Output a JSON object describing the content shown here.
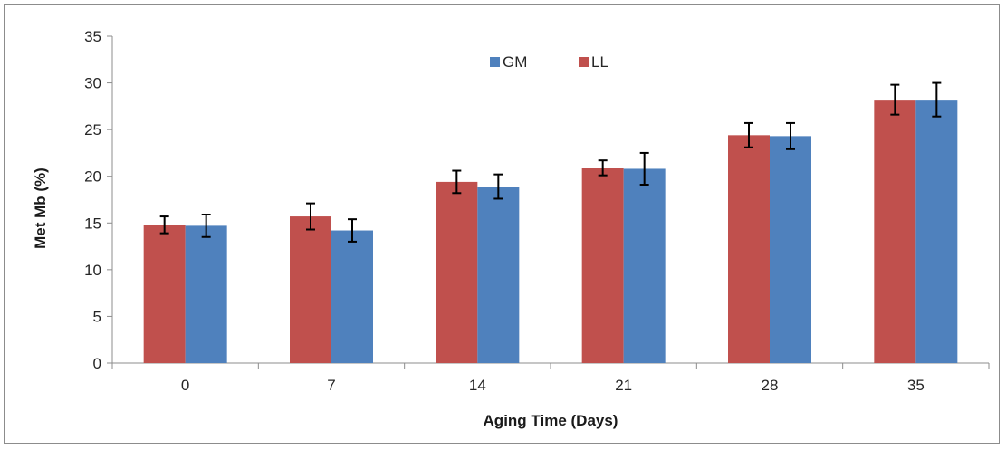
{
  "chart_data": {
    "type": "bar",
    "title": "",
    "xlabel": "Aging Time (Days)",
    "ylabel": "Met Mb (%)",
    "categories": [
      "0",
      "7",
      "14",
      "21",
      "28",
      "35"
    ],
    "ylim": [
      0,
      35
    ],
    "yticks": [
      "0",
      "5",
      "10",
      "15",
      "20",
      "25",
      "30",
      "35"
    ],
    "grid": false,
    "legend_position": "top-center",
    "series": [
      {
        "name": "LL",
        "color": "#c0504d",
        "values": [
          14.8,
          15.7,
          19.4,
          20.9,
          24.4,
          28.2
        ],
        "errors": [
          0.9,
          1.4,
          1.2,
          0.8,
          1.3,
          1.6
        ]
      },
      {
        "name": "GM",
        "color": "#4f81bd",
        "values": [
          14.7,
          14.2,
          18.9,
          20.8,
          24.3,
          28.2
        ],
        "errors": [
          1.2,
          1.2,
          1.3,
          1.7,
          1.4,
          1.8
        ]
      }
    ],
    "legend_order": [
      "GM",
      "LL"
    ]
  }
}
